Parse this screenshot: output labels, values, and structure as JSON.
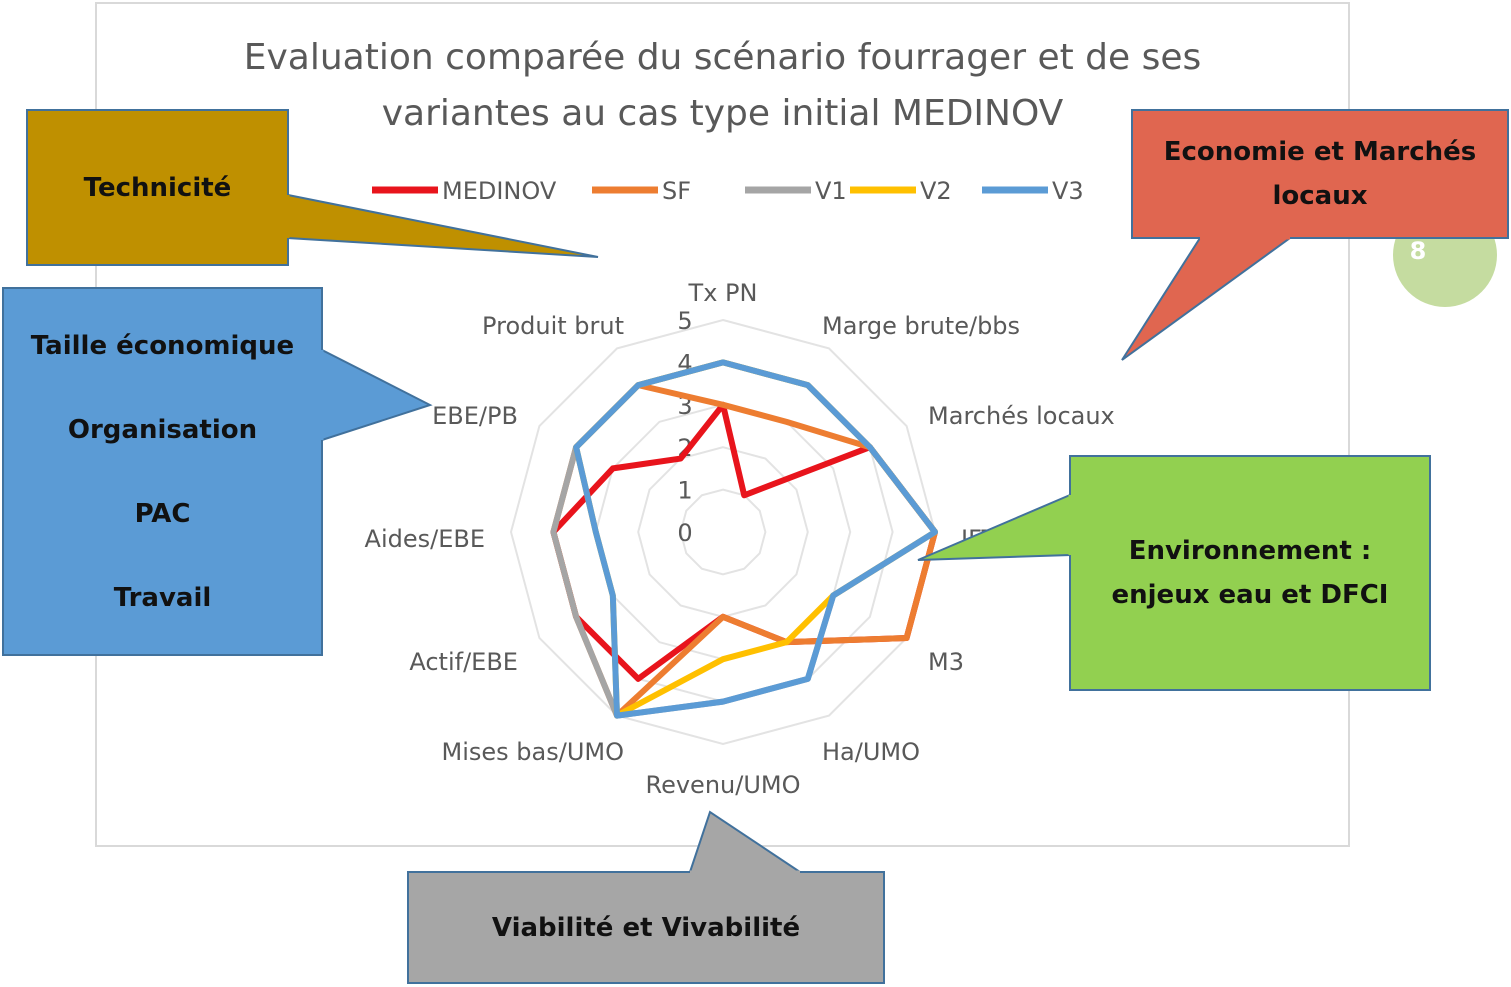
{
  "chart_data": {
    "type": "radar",
    "title": "Evaluation comparée du scénario fourrager et de ses variantes au cas type initial MEDINOV",
    "categories": [
      "Tx PN",
      "Marge brute/bbs",
      "Marchés locaux",
      "IFT",
      "M3",
      "Ha/UMO",
      "Revenu/UMO",
      "Mises bas/UMO",
      "Actif/EBE",
      "Aides/EBE",
      "EBE/PB",
      "Produit brut"
    ],
    "series": [
      {
        "name": "MEDINOV",
        "color": "#e8141c",
        "values": [
          3,
          1,
          4,
          5,
          5,
          3,
          2,
          4,
          4,
          4,
          3,
          2
        ]
      },
      {
        "name": "SF",
        "color": "#ed7d31",
        "values": [
          3,
          3,
          4,
          5,
          5,
          3,
          2,
          5,
          4,
          4,
          4,
          4
        ]
      },
      {
        "name": "V1",
        "color": "#a5a5a5",
        "values": [
          4,
          4,
          4,
          5,
          3,
          4,
          4,
          5,
          4,
          4,
          4,
          4
        ]
      },
      {
        "name": "V2",
        "color": "#ffc000",
        "values": [
          4,
          4,
          4,
          5,
          3,
          3,
          3,
          5,
          3,
          3,
          4,
          4
        ]
      },
      {
        "name": "V3",
        "color": "#5b9bd5",
        "values": [
          4,
          4,
          4,
          5,
          3,
          4,
          4,
          5,
          3,
          3,
          4,
          4
        ]
      }
    ],
    "rlim": [
      0,
      5
    ],
    "rticks": [
      0,
      1,
      2,
      3,
      4,
      5
    ],
    "grid": true,
    "legend": "top"
  },
  "callouts": [
    {
      "lines": [
        "Technicité"
      ],
      "color": "#bf9000"
    },
    {
      "lines": [
        "Taille économique",
        "Organisation",
        "PAC",
        "Travail"
      ],
      "color": "#5b9bd5"
    },
    {
      "lines": [
        "Economie et Marchés locaux"
      ],
      "color": "#e06650"
    },
    {
      "lines": [
        "Environnement : enjeux eau et DFCI"
      ],
      "color": "#92d050"
    },
    {
      "lines": [
        "Viabilité et Vivabilité"
      ],
      "color": "#a6a6a6"
    }
  ],
  "badge": "8"
}
